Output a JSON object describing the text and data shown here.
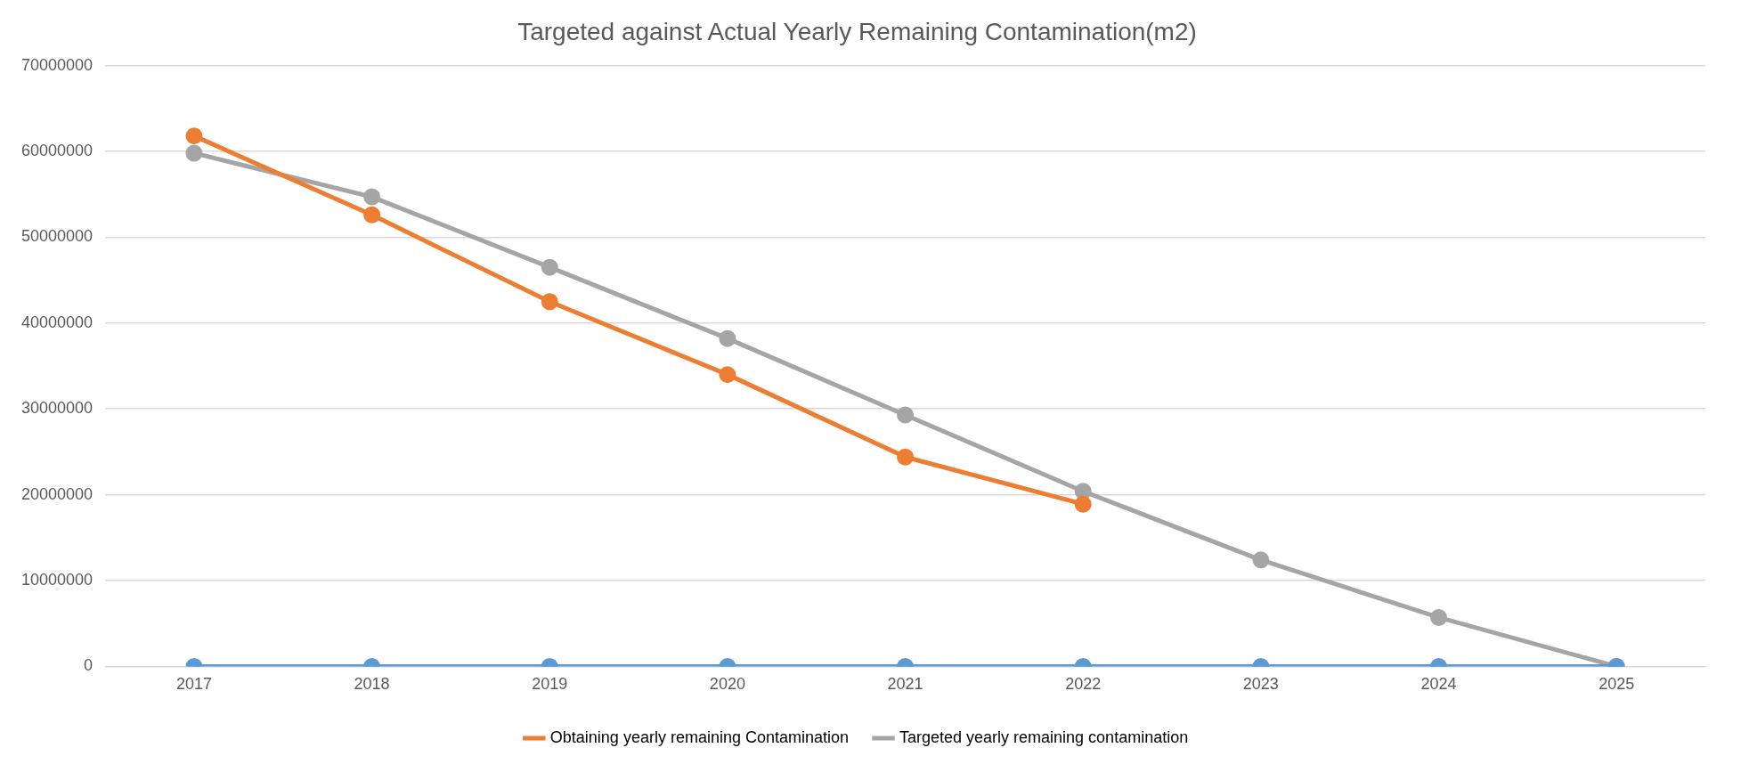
{
  "chart_data": {
    "type": "line",
    "title": "Targeted against Actual Yearly Remaining Contamination(m2)",
    "categories": [
      "2017",
      "2018",
      "2019",
      "2020",
      "2021",
      "2022",
      "2023",
      "2024",
      "2025"
    ],
    "series": [
      {
        "color": "#5b9bd5",
        "values": [
          0,
          0,
          0,
          0,
          0,
          0,
          0,
          0,
          0
        ]
      },
      {
        "name": "Obtaining yearly remaining Contamination",
        "color": "#ed7d31",
        "values": [
          61800000,
          52600000,
          42500000,
          34000000,
          24400000,
          18900000,
          null,
          null,
          null
        ]
      },
      {
        "name": "Targeted yearly remaining contamination",
        "color": "#a5a5a5",
        "values": [
          59800000,
          54700000,
          46500000,
          38200000,
          29300000,
          20400000,
          12400000,
          5700000,
          0
        ]
      }
    ],
    "ylim": [
      0,
      70000000
    ],
    "yticks": [
      0,
      10000000,
      20000000,
      30000000,
      40000000,
      50000000,
      60000000,
      70000000
    ],
    "grid": "y",
    "legend": "bottom",
    "marker": "circle",
    "line_style": "solid"
  }
}
